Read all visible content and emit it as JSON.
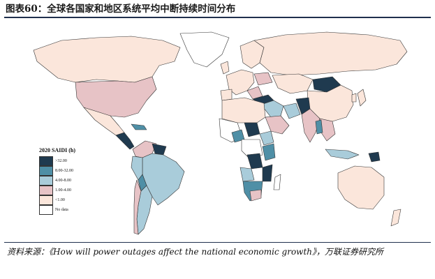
{
  "figure_title": "图表60：全球各国家和地区系统平均中断持续时间分布",
  "legend": {
    "title": "2020 SAIDI (h)",
    "items": [
      {
        "label": ">32.00",
        "color": "#1f3a4f"
      },
      {
        "label": "8.00-32.00",
        "color": "#4f8fa6"
      },
      {
        "label": "4.00-8.00",
        "color": "#a9ccda"
      },
      {
        "label": "1.00-4.00",
        "color": "#e7c3c6"
      },
      {
        "label": "<1.00",
        "color": "#fbe6db"
      },
      {
        "label": "No data",
        "color": "#ffffff"
      }
    ]
  },
  "source": "资料来源：《How will power outages affect the national economic growth》，万联证券研究所",
  "colors": {
    "border": "#333333",
    "rule": "#1f2f4d"
  }
}
